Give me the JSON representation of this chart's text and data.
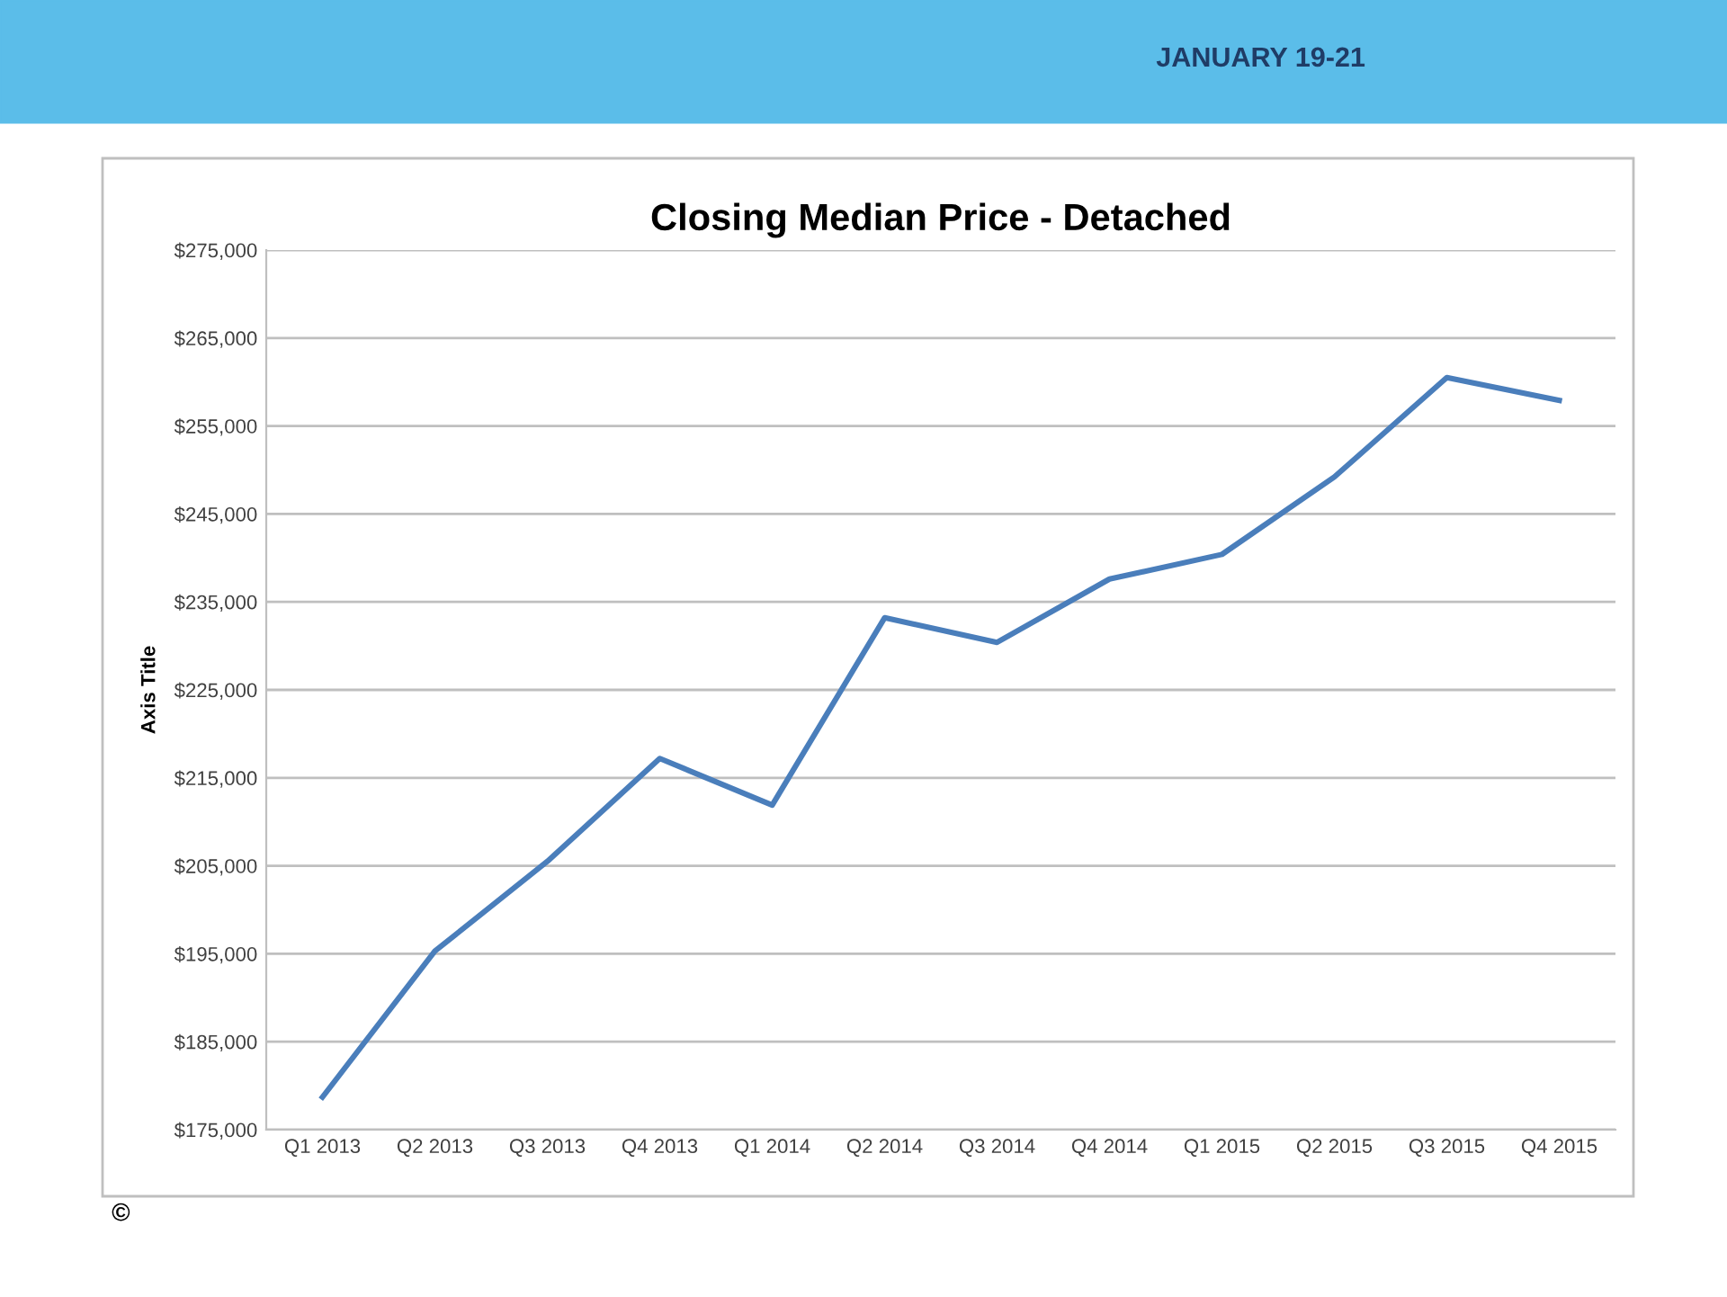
{
  "chart_data": {
    "type": "line",
    "title": "Closing Median Price - Detached",
    "ylabel": "Axis Title",
    "categories": [
      "Q1 2013",
      "Q2 2013",
      "Q3 2013",
      "Q4 2013",
      "Q1 2014",
      "Q2 2014",
      "Q3 2014",
      "Q4 2014",
      "Q1 2015",
      "Q2 2015",
      "Q3 2015",
      "Q4 2015"
    ],
    "series": [
      {
        "color": "#4a7ebb",
        "values": [
          178700,
          195300,
          205500,
          217200,
          211900,
          233200,
          230400,
          237600,
          240400,
          249200,
          260500,
          257900
        ]
      }
    ],
    "ylim": [
      175000,
      275000
    ],
    "yticks": [
      {
        "value": 175000,
        "label": "$175,000"
      },
      {
        "value": 185000,
        "label": "$185,000"
      },
      {
        "value": 195000,
        "label": "$195,000"
      },
      {
        "value": 205000,
        "label": "$205,000"
      },
      {
        "value": 215000,
        "label": "$215,000"
      },
      {
        "value": 225000,
        "label": "$225,000"
      },
      {
        "value": 235000,
        "label": "$235,000"
      },
      {
        "value": 245000,
        "label": "$245,000"
      },
      {
        "value": 255000,
        "label": "$255,000"
      },
      {
        "value": 265000,
        "label": "$265,000"
      },
      {
        "value": 275000,
        "label": "$275,000"
      }
    ],
    "grid": "y",
    "marker": "none",
    "line_style": "solid",
    "annotations": [
      "JANUARY 19-21",
      "©"
    ]
  }
}
